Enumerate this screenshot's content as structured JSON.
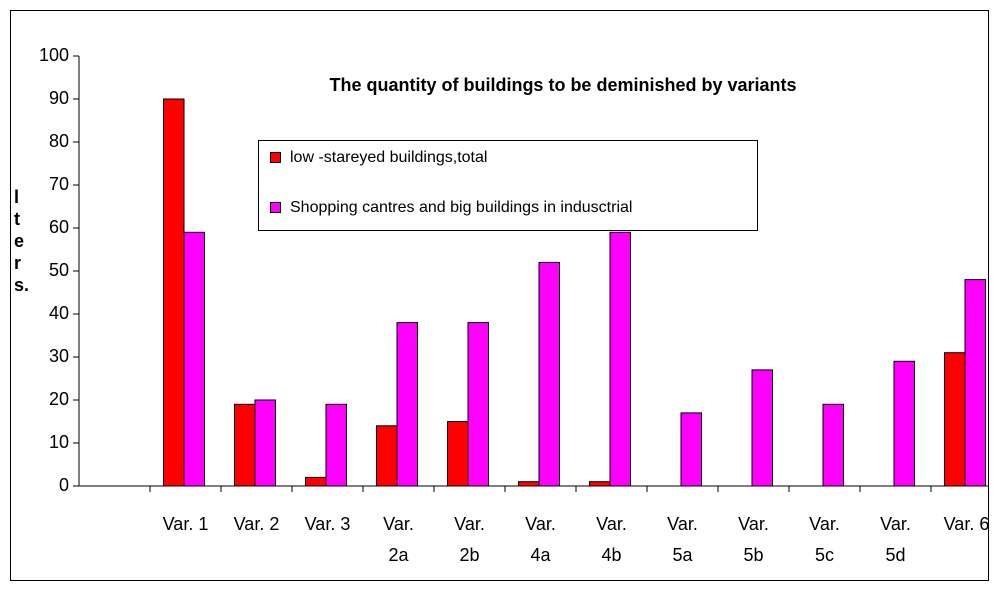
{
  "chart_data": {
    "type": "bar",
    "title": "The quantity of buildings to be deminished by variants",
    "y_label": "lters.",
    "categories": [
      null,
      "Var. 1",
      "Var. 2",
      "Var. 3",
      "Var. 2a",
      "Var. 2b",
      "Var. 4a",
      "Var. 4b",
      "Var. 5a",
      "Var. 5b",
      "Var. 5c",
      "Var. 5d",
      "Var. 6"
    ],
    "series": [
      {
        "name": "low -stareyed buildings,total",
        "color": "#ff0000",
        "values": [
          null,
          90,
          19,
          2,
          14,
          15,
          1,
          1,
          0,
          0,
          0,
          0,
          31
        ]
      },
      {
        "name": "Shopping cantres and big buildings in indusctrial",
        "color": "#ff00ff",
        "values": [
          null,
          59,
          20,
          19,
          38,
          38,
          52,
          59,
          17,
          27,
          19,
          29,
          48
        ]
      }
    ],
    "ylim": [
      0,
      100
    ],
    "yticks": [
      0,
      10,
      20,
      30,
      40,
      50,
      60,
      70,
      80,
      90,
      100
    ]
  }
}
